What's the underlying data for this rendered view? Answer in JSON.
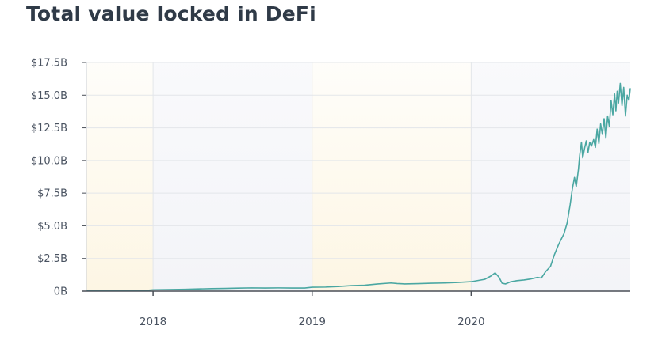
{
  "page": {
    "title": "Total value locked in DeFi"
  },
  "chart_data": {
    "type": "line",
    "title": "Total value locked in DeFi",
    "xlabel": "",
    "ylabel": "",
    "y_unit": "USD billions",
    "ylim": [
      0,
      17.5
    ],
    "xlim": [
      "2017-08-01",
      "2020-12-31"
    ],
    "y_ticks": [
      {
        "value": 17.5,
        "label": "$17.5B"
      },
      {
        "value": 15.0,
        "label": "$15.0B"
      },
      {
        "value": 12.5,
        "label": "$12.5B"
      },
      {
        "value": 10.0,
        "label": "$10.0B"
      },
      {
        "value": 7.5,
        "label": "$7.5B"
      },
      {
        "value": 5.0,
        "label": "$5.0B"
      },
      {
        "value": 2.5,
        "label": "$2.5B"
      },
      {
        "value": 0,
        "label": "0B"
      }
    ],
    "x_ticks": [
      {
        "value": "2018-01-01",
        "label": "2018"
      },
      {
        "value": "2019-01-01",
        "label": "2019"
      },
      {
        "value": "2020-01-01",
        "label": "2020"
      }
    ],
    "grid": true,
    "legend": "none",
    "colors": {
      "line": "#4aa7a2",
      "grid": "#e3e6ea",
      "axis": "#4a4f57",
      "band_warm": "#fdf6e4",
      "band_cool": "#f3f4f8"
    },
    "series": [
      {
        "color": "#4aa7a2",
        "points": [
          [
            "2017-08-01",
            0.02
          ],
          [
            "2017-09-15",
            0.03
          ],
          [
            "2017-11-01",
            0.04
          ],
          [
            "2017-12-15",
            0.05
          ],
          [
            "2018-01-01",
            0.1
          ],
          [
            "2018-02-01",
            0.12
          ],
          [
            "2018-03-15",
            0.14
          ],
          [
            "2018-04-15",
            0.17
          ],
          [
            "2018-05-15",
            0.19
          ],
          [
            "2018-06-15",
            0.21
          ],
          [
            "2018-07-15",
            0.23
          ],
          [
            "2018-08-15",
            0.25
          ],
          [
            "2018-09-15",
            0.24
          ],
          [
            "2018-10-15",
            0.25
          ],
          [
            "2018-11-15",
            0.24
          ],
          [
            "2018-12-15",
            0.24
          ],
          [
            "2019-01-01",
            0.3
          ],
          [
            "2019-02-01",
            0.31
          ],
          [
            "2019-03-01",
            0.35
          ],
          [
            "2019-04-01",
            0.42
          ],
          [
            "2019-05-01",
            0.45
          ],
          [
            "2019-06-01",
            0.55
          ],
          [
            "2019-07-01",
            0.62
          ],
          [
            "2019-07-15",
            0.58
          ],
          [
            "2019-08-01",
            0.55
          ],
          [
            "2019-09-01",
            0.57
          ],
          [
            "2019-10-01",
            0.6
          ],
          [
            "2019-11-01",
            0.62
          ],
          [
            "2019-12-01",
            0.66
          ],
          [
            "2020-01-01",
            0.72
          ],
          [
            "2020-02-01",
            0.9
          ],
          [
            "2020-02-15",
            1.15
          ],
          [
            "2020-02-25",
            1.4
          ],
          [
            "2020-03-05",
            1.05
          ],
          [
            "2020-03-12",
            0.6
          ],
          [
            "2020-03-20",
            0.55
          ],
          [
            "2020-04-01",
            0.72
          ],
          [
            "2020-04-15",
            0.8
          ],
          [
            "2020-05-01",
            0.85
          ],
          [
            "2020-05-15",
            0.92
          ],
          [
            "2020-06-01",
            1.05
          ],
          [
            "2020-06-10",
            1.0
          ],
          [
            "2020-06-20",
            1.5
          ],
          [
            "2020-07-01",
            1.9
          ],
          [
            "2020-07-10",
            2.8
          ],
          [
            "2020-07-20",
            3.6
          ],
          [
            "2020-08-01",
            4.4
          ],
          [
            "2020-08-08",
            5.2
          ],
          [
            "2020-08-15",
            6.6
          ],
          [
            "2020-08-20",
            7.8
          ],
          [
            "2020-08-25",
            8.7
          ],
          [
            "2020-08-29",
            8.0
          ],
          [
            "2020-09-03",
            9.3
          ],
          [
            "2020-09-06",
            10.4
          ],
          [
            "2020-09-10",
            11.4
          ],
          [
            "2020-09-13",
            10.2
          ],
          [
            "2020-09-17",
            10.9
          ],
          [
            "2020-09-21",
            11.5
          ],
          [
            "2020-09-25",
            10.6
          ],
          [
            "2020-09-29",
            11.4
          ],
          [
            "2020-10-03",
            11.1
          ],
          [
            "2020-10-08",
            11.6
          ],
          [
            "2020-10-12",
            11.0
          ],
          [
            "2020-10-16",
            12.4
          ],
          [
            "2020-10-20",
            11.3
          ],
          [
            "2020-10-24",
            12.8
          ],
          [
            "2020-10-28",
            12.0
          ],
          [
            "2020-11-01",
            13.2
          ],
          [
            "2020-11-05",
            11.7
          ],
          [
            "2020-11-09",
            13.4
          ],
          [
            "2020-11-13",
            12.6
          ],
          [
            "2020-11-17",
            14.6
          ],
          [
            "2020-11-21",
            13.5
          ],
          [
            "2020-11-25",
            15.1
          ],
          [
            "2020-11-28",
            13.8
          ],
          [
            "2020-12-01",
            15.3
          ],
          [
            "2020-12-04",
            14.4
          ],
          [
            "2020-12-08",
            15.9
          ],
          [
            "2020-12-12",
            14.2
          ],
          [
            "2020-12-16",
            15.6
          ],
          [
            "2020-12-20",
            13.4
          ],
          [
            "2020-12-24",
            15.0
          ],
          [
            "2020-12-28",
            14.6
          ],
          [
            "2020-12-31",
            15.5
          ]
        ]
      }
    ]
  }
}
